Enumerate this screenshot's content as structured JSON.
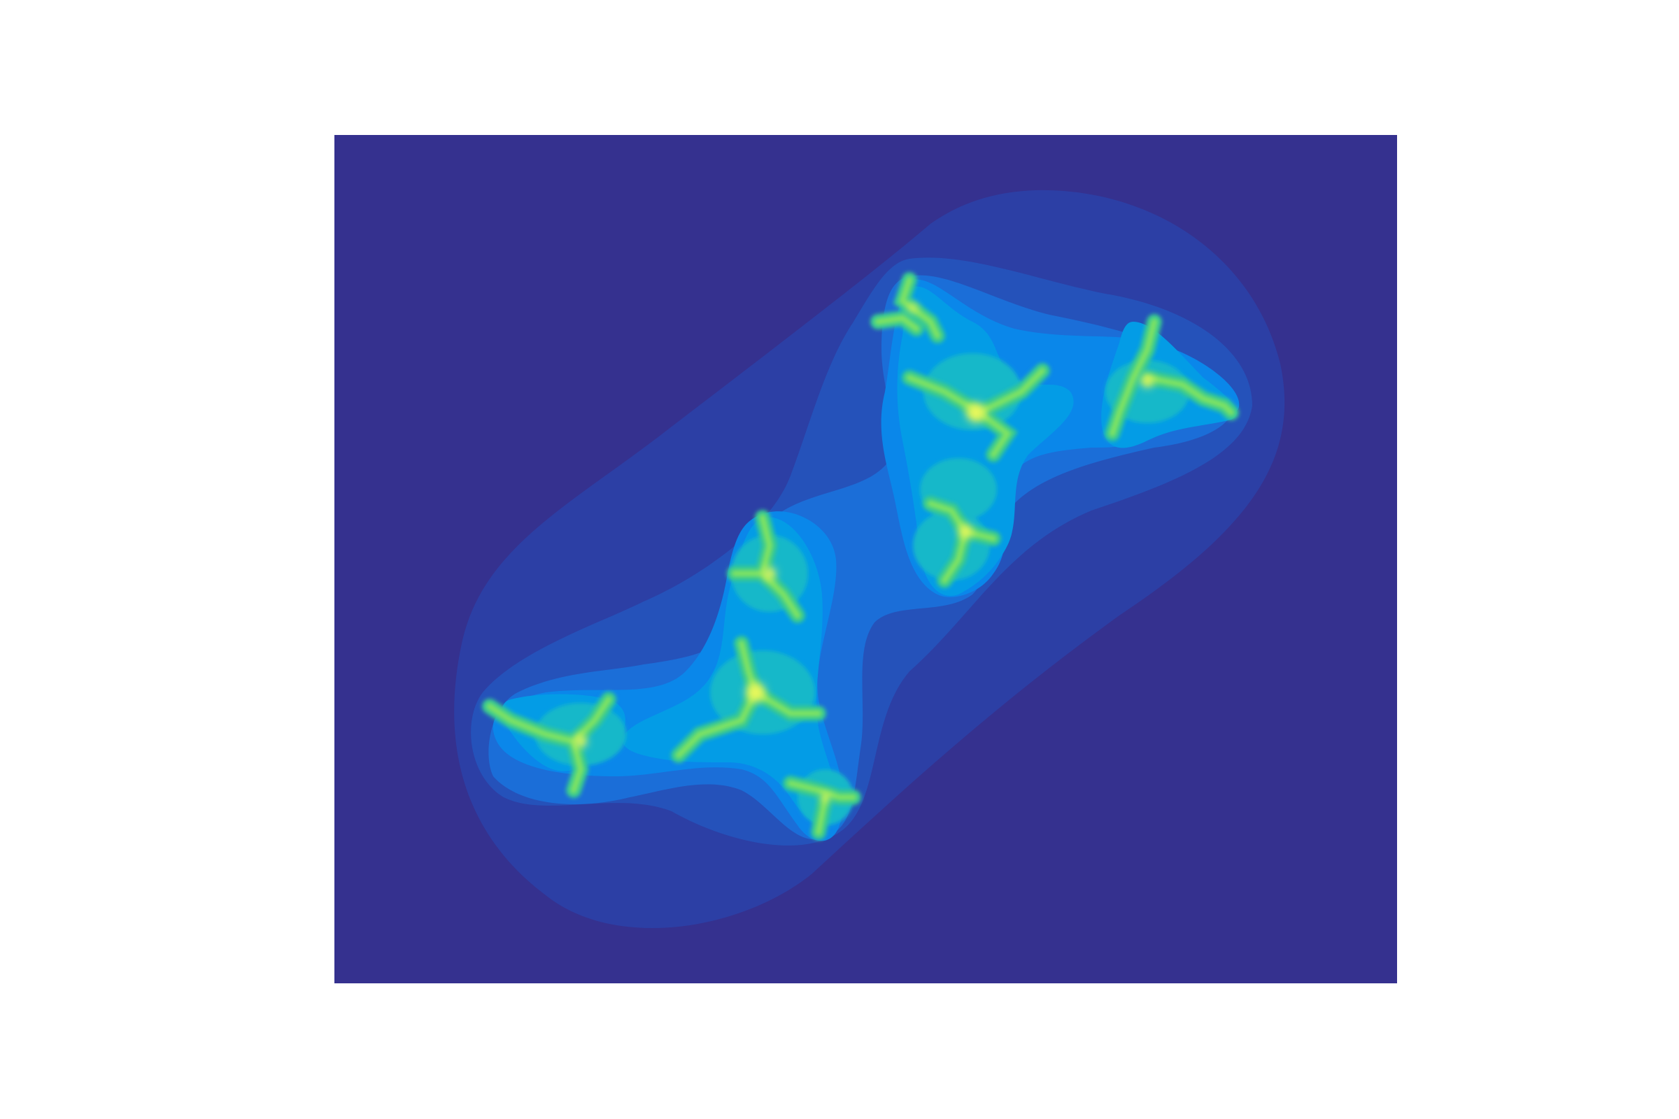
{
  "image": {
    "subject": "julia-set-fractal",
    "palette": {
      "background": "#ffffff",
      "outer": "#35318f",
      "level1": "#2c3fa5",
      "level2": "#2552ba",
      "level3": "#1b6ed8",
      "level4": "#0a87ea",
      "level5": "#039ce6",
      "level6": "#13b8c9",
      "level7": "#37c992",
      "core": "#7de263",
      "highlight": "#e8f85c"
    }
  }
}
